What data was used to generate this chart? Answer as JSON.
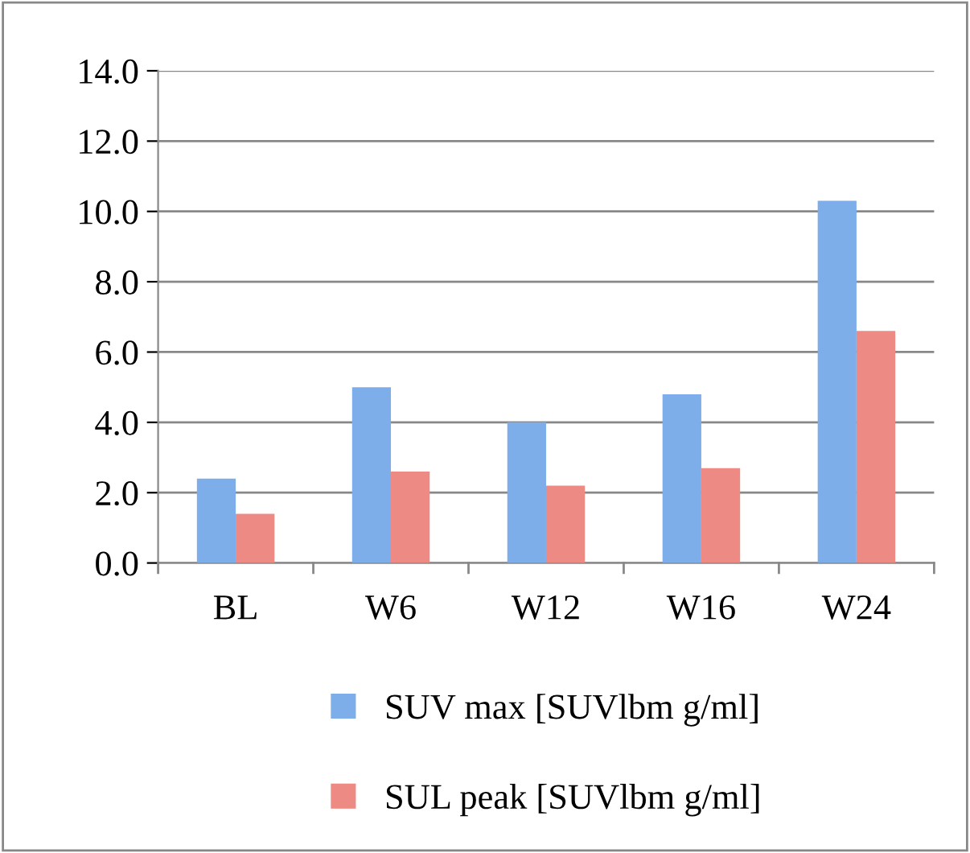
{
  "chart_data": {
    "type": "bar",
    "categories": [
      "BL",
      "W6",
      "W12",
      "W16",
      "W24"
    ],
    "series": [
      {
        "name": "SUV max [SUVlbm g/ml]",
        "color": "#7eaeea",
        "values": [
          2.4,
          5.0,
          4.0,
          4.8,
          10.3
        ]
      },
      {
        "name": "SUL peak [SUVlbm g/ml]",
        "color": "#ee8a84",
        "values": [
          1.4,
          2.6,
          2.2,
          2.7,
          6.6
        ]
      }
    ],
    "ylim": [
      0,
      14
    ],
    "yticks": [
      {
        "value": 0,
        "label": "0.0"
      },
      {
        "value": 2,
        "label": "2.0"
      },
      {
        "value": 4,
        "label": "4.0"
      },
      {
        "value": 6,
        "label": "6.0"
      },
      {
        "value": 8,
        "label": "8.0"
      },
      {
        "value": 10,
        "label": "10.0"
      },
      {
        "value": 12,
        "label": "12.0"
      },
      {
        "value": 14,
        "label": "14.0"
      }
    ],
    "grid": "y",
    "legend": "bottom"
  }
}
